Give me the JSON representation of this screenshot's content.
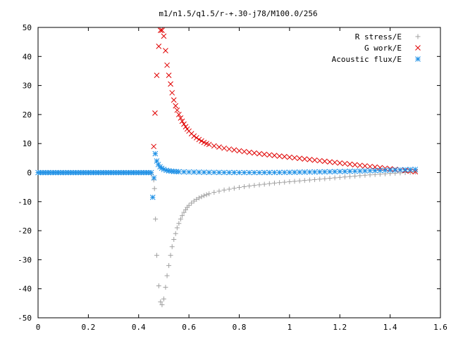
{
  "chart_data": {
    "type": "scatter",
    "title": "m1/n1.5/q1.5/r-+.30-j78/M100.0/256",
    "xlabel": "",
    "ylabel": "",
    "xlim": [
      0,
      1.6
    ],
    "ylim": [
      -50,
      50
    ],
    "xticks": [
      "0",
      "0.2",
      "0.4",
      "0.6",
      "0.8",
      "1",
      "1.2",
      "1.4",
      "1.6"
    ],
    "yticks": [
      "50",
      "40",
      "30",
      "20",
      "10",
      "0",
      "-10",
      "-20",
      "-30",
      "-40",
      "-50"
    ],
    "grid": false,
    "legend_position": "top-right",
    "series": [
      {
        "name": "R stress/E",
        "marker": "plus",
        "color": "#a0a0a0",
        "points": [
          [
            0.0,
            0
          ],
          [
            0.02,
            0
          ],
          [
            0.04,
            0
          ],
          [
            0.06,
            0
          ],
          [
            0.08,
            0
          ],
          [
            0.1,
            0
          ],
          [
            0.12,
            0
          ],
          [
            0.14,
            0
          ],
          [
            0.16,
            0
          ],
          [
            0.18,
            0
          ],
          [
            0.2,
            0
          ],
          [
            0.22,
            0
          ],
          [
            0.24,
            0
          ],
          [
            0.26,
            0
          ],
          [
            0.28,
            0
          ],
          [
            0.3,
            0
          ],
          [
            0.32,
            0
          ],
          [
            0.34,
            0
          ],
          [
            0.36,
            0
          ],
          [
            0.38,
            0
          ],
          [
            0.4,
            0
          ],
          [
            0.42,
            0
          ],
          [
            0.44,
            0
          ],
          [
            0.45,
            -0.5
          ],
          [
            0.46,
            -2.5
          ],
          [
            0.463,
            -5.5
          ],
          [
            0.467,
            -16
          ],
          [
            0.472,
            -28.5
          ],
          [
            0.48,
            -39
          ],
          [
            0.487,
            -44.5
          ],
          [
            0.493,
            -45.5
          ],
          [
            0.5,
            -43.5
          ],
          [
            0.507,
            -39.5
          ],
          [
            0.513,
            -35.5
          ],
          [
            0.52,
            -32
          ],
          [
            0.527,
            -28.5
          ],
          [
            0.533,
            -25.5
          ],
          [
            0.54,
            -23
          ],
          [
            0.547,
            -21
          ],
          [
            0.553,
            -19
          ],
          [
            0.56,
            -17.5
          ],
          [
            0.567,
            -16
          ],
          [
            0.573,
            -14.8
          ],
          [
            0.58,
            -13.7
          ],
          [
            0.587,
            -12.8
          ],
          [
            0.593,
            -12
          ],
          [
            0.6,
            -11.3
          ],
          [
            0.61,
            -10.5
          ],
          [
            0.62,
            -9.8
          ],
          [
            0.63,
            -9.2
          ],
          [
            0.64,
            -8.7
          ],
          [
            0.65,
            -8.3
          ],
          [
            0.66,
            -7.9
          ],
          [
            0.67,
            -7.6
          ],
          [
            0.68,
            -7.3
          ],
          [
            0.7,
            -6.8
          ],
          [
            0.72,
            -6.4
          ],
          [
            0.74,
            -6.0
          ],
          [
            0.76,
            -5.7
          ],
          [
            0.78,
            -5.4
          ],
          [
            0.8,
            -5.1
          ],
          [
            0.82,
            -4.85
          ],
          [
            0.84,
            -4.6
          ],
          [
            0.86,
            -4.4
          ],
          [
            0.88,
            -4.2
          ],
          [
            0.9,
            -4.0
          ],
          [
            0.92,
            -3.8
          ],
          [
            0.94,
            -3.6
          ],
          [
            0.96,
            -3.45
          ],
          [
            0.98,
            -3.3
          ],
          [
            1.0,
            -3.15
          ],
          [
            1.02,
            -3.0
          ],
          [
            1.04,
            -2.85
          ],
          [
            1.06,
            -2.7
          ],
          [
            1.08,
            -2.55
          ],
          [
            1.1,
            -2.4
          ],
          [
            1.12,
            -2.25
          ],
          [
            1.14,
            -2.1
          ],
          [
            1.16,
            -1.95
          ],
          [
            1.18,
            -1.8
          ],
          [
            1.2,
            -1.65
          ],
          [
            1.22,
            -1.5
          ],
          [
            1.24,
            -1.35
          ],
          [
            1.26,
            -1.2
          ],
          [
            1.28,
            -1.05
          ],
          [
            1.3,
            -0.9
          ],
          [
            1.32,
            -0.78
          ],
          [
            1.34,
            -0.66
          ],
          [
            1.36,
            -0.54
          ],
          [
            1.38,
            -0.42
          ],
          [
            1.4,
            -0.3
          ],
          [
            1.42,
            -0.2
          ],
          [
            1.44,
            -0.1
          ],
          [
            1.46,
            0
          ],
          [
            1.48,
            0.1
          ],
          [
            1.5,
            0.2
          ]
        ]
      },
      {
        "name": "G work/E",
        "marker": "cross",
        "color": "#e00000",
        "points": [
          [
            0.46,
            9.0
          ],
          [
            0.465,
            20.5
          ],
          [
            0.472,
            33.5
          ],
          [
            0.48,
            43.5
          ],
          [
            0.487,
            49
          ],
          [
            0.493,
            49
          ],
          [
            0.5,
            47
          ],
          [
            0.507,
            42
          ],
          [
            0.513,
            37
          ],
          [
            0.52,
            33.5
          ],
          [
            0.527,
            30.5
          ],
          [
            0.533,
            27.5
          ],
          [
            0.54,
            25
          ],
          [
            0.547,
            23
          ],
          [
            0.553,
            21.5
          ],
          [
            0.56,
            20
          ],
          [
            0.567,
            18.8
          ],
          [
            0.573,
            17.7
          ],
          [
            0.58,
            16.7
          ],
          [
            0.587,
            15.8
          ],
          [
            0.593,
            15
          ],
          [
            0.6,
            14.3
          ],
          [
            0.61,
            13.4
          ],
          [
            0.62,
            12.6
          ],
          [
            0.63,
            12.0
          ],
          [
            0.64,
            11.4
          ],
          [
            0.65,
            10.9
          ],
          [
            0.66,
            10.4
          ],
          [
            0.67,
            10.0
          ],
          [
            0.68,
            9.7
          ],
          [
            0.7,
            9.2
          ],
          [
            0.72,
            8.8
          ],
          [
            0.74,
            8.4
          ],
          [
            0.76,
            8.1
          ],
          [
            0.78,
            7.8
          ],
          [
            0.8,
            7.5
          ],
          [
            0.82,
            7.25
          ],
          [
            0.84,
            7.0
          ],
          [
            0.86,
            6.75
          ],
          [
            0.88,
            6.5
          ],
          [
            0.9,
            6.3
          ],
          [
            0.92,
            6.1
          ],
          [
            0.94,
            5.9
          ],
          [
            0.96,
            5.7
          ],
          [
            0.98,
            5.5
          ],
          [
            1.0,
            5.3
          ],
          [
            1.02,
            5.1
          ],
          [
            1.04,
            4.9
          ],
          [
            1.06,
            4.7
          ],
          [
            1.08,
            4.5
          ],
          [
            1.1,
            4.3
          ],
          [
            1.12,
            4.1
          ],
          [
            1.14,
            3.9
          ],
          [
            1.16,
            3.7
          ],
          [
            1.18,
            3.5
          ],
          [
            1.2,
            3.3
          ],
          [
            1.22,
            3.1
          ],
          [
            1.24,
            2.9
          ],
          [
            1.26,
            2.7
          ],
          [
            1.28,
            2.5
          ],
          [
            1.3,
            2.3
          ],
          [
            1.32,
            2.1
          ],
          [
            1.34,
            1.9
          ],
          [
            1.36,
            1.7
          ],
          [
            1.38,
            1.5
          ],
          [
            1.4,
            1.3
          ],
          [
            1.42,
            1.1
          ],
          [
            1.44,
            0.9
          ],
          [
            1.46,
            0.7
          ],
          [
            1.48,
            0.5
          ],
          [
            1.5,
            0.3
          ]
        ]
      },
      {
        "name": "Acoustic flux/E",
        "marker": "star",
        "color": "#1e90e6",
        "points": [
          [
            0.0,
            0
          ],
          [
            0.01,
            0
          ],
          [
            0.02,
            0
          ],
          [
            0.03,
            0
          ],
          [
            0.04,
            0
          ],
          [
            0.05,
            0
          ],
          [
            0.06,
            0
          ],
          [
            0.07,
            0
          ],
          [
            0.08,
            0
          ],
          [
            0.09,
            0
          ],
          [
            0.1,
            0
          ],
          [
            0.11,
            0
          ],
          [
            0.12,
            0
          ],
          [
            0.13,
            0
          ],
          [
            0.14,
            0
          ],
          [
            0.15,
            0
          ],
          [
            0.16,
            0
          ],
          [
            0.17,
            0
          ],
          [
            0.18,
            0
          ],
          [
            0.19,
            0
          ],
          [
            0.2,
            0
          ],
          [
            0.21,
            0
          ],
          [
            0.22,
            0
          ],
          [
            0.23,
            0
          ],
          [
            0.24,
            0
          ],
          [
            0.25,
            0
          ],
          [
            0.26,
            0
          ],
          [
            0.27,
            0
          ],
          [
            0.28,
            0
          ],
          [
            0.29,
            0
          ],
          [
            0.3,
            0
          ],
          [
            0.31,
            0
          ],
          [
            0.32,
            0
          ],
          [
            0.33,
            0
          ],
          [
            0.34,
            0
          ],
          [
            0.35,
            0
          ],
          [
            0.36,
            0
          ],
          [
            0.37,
            0
          ],
          [
            0.38,
            0
          ],
          [
            0.39,
            0
          ],
          [
            0.4,
            0
          ],
          [
            0.41,
            0
          ],
          [
            0.42,
            0
          ],
          [
            0.43,
            0
          ],
          [
            0.44,
            0
          ],
          [
            0.45,
            0
          ],
          [
            0.456,
            -8.5
          ],
          [
            0.461,
            -1.8
          ],
          [
            0.466,
            6.5
          ],
          [
            0.472,
            4
          ],
          [
            0.478,
            2.8
          ],
          [
            0.485,
            2
          ],
          [
            0.492,
            1.5
          ],
          [
            0.5,
            1.1
          ],
          [
            0.51,
            0.8
          ],
          [
            0.52,
            0.6
          ],
          [
            0.53,
            0.5
          ],
          [
            0.54,
            0.4
          ],
          [
            0.55,
            0.35
          ],
          [
            0.56,
            0.3
          ],
          [
            0.58,
            0.25
          ],
          [
            0.6,
            0.2
          ],
          [
            0.62,
            0.18
          ],
          [
            0.64,
            0.15
          ],
          [
            0.66,
            0.12
          ],
          [
            0.68,
            0.1
          ],
          [
            0.7,
            0.08
          ],
          [
            0.72,
            0.06
          ],
          [
            0.74,
            0.05
          ],
          [
            0.76,
            0.04
          ],
          [
            0.78,
            0.03
          ],
          [
            0.8,
            0.02
          ],
          [
            0.82,
            0.02
          ],
          [
            0.84,
            0.02
          ],
          [
            0.86,
            0.02
          ],
          [
            0.88,
            0.02
          ],
          [
            0.9,
            0.03
          ],
          [
            0.92,
            0.04
          ],
          [
            0.94,
            0.05
          ],
          [
            0.96,
            0.06
          ],
          [
            0.98,
            0.08
          ],
          [
            1.0,
            0.1
          ],
          [
            1.02,
            0.12
          ],
          [
            1.04,
            0.15
          ],
          [
            1.06,
            0.18
          ],
          [
            1.08,
            0.2
          ],
          [
            1.1,
            0.22
          ],
          [
            1.12,
            0.25
          ],
          [
            1.14,
            0.28
          ],
          [
            1.16,
            0.3
          ],
          [
            1.18,
            0.33
          ],
          [
            1.2,
            0.36
          ],
          [
            1.22,
            0.4
          ],
          [
            1.24,
            0.45
          ],
          [
            1.26,
            0.5
          ],
          [
            1.28,
            0.55
          ],
          [
            1.3,
            0.6
          ],
          [
            1.32,
            0.65
          ],
          [
            1.34,
            0.7
          ],
          [
            1.36,
            0.75
          ],
          [
            1.38,
            0.8
          ],
          [
            1.4,
            0.85
          ],
          [
            1.42,
            0.9
          ],
          [
            1.44,
            0.95
          ],
          [
            1.46,
            1.0
          ],
          [
            1.48,
            1.05
          ],
          [
            1.5,
            1.1
          ]
        ]
      }
    ]
  }
}
